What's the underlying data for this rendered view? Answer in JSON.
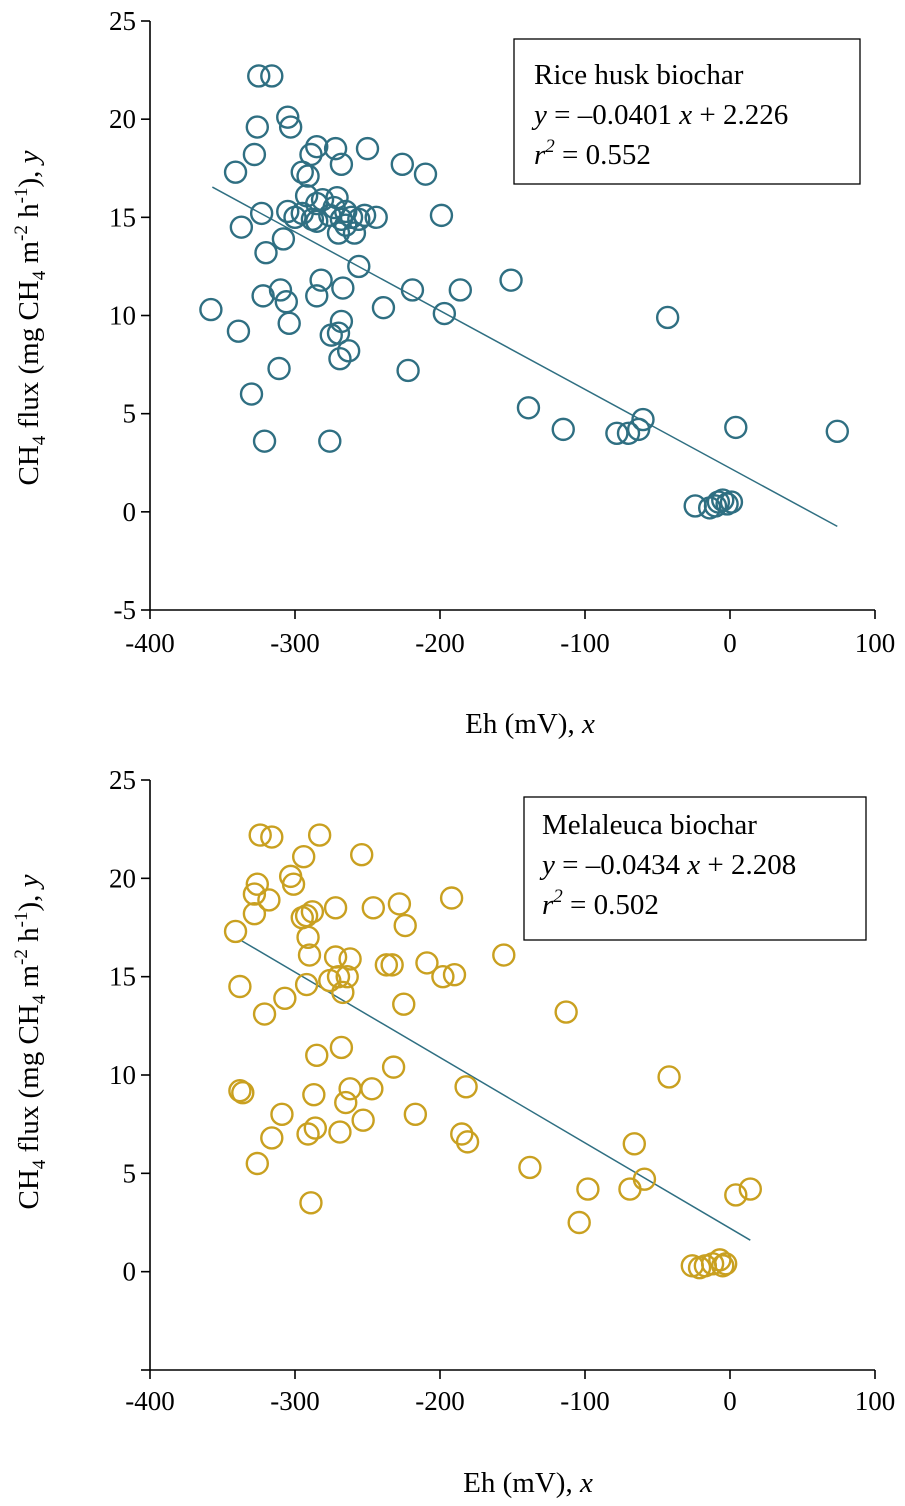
{
  "chart_data": [
    {
      "type": "scatter",
      "xlabel": "Eh (mV), x",
      "ylabel": "CH4 flux (mg CH4 m-2 h-1), y",
      "xlim": [
        -400,
        100
      ],
      "ylim": [
        -5,
        25
      ],
      "xticks": [
        "-400",
        "-300",
        "-200",
        "-100",
        "0",
        "100"
      ],
      "yticks": [
        "-5",
        "0",
        "5",
        "10",
        "15",
        "20",
        "25"
      ],
      "grid": false,
      "legend_position": "top-right",
      "marker_color": "#2f6f82",
      "line_color": "#2f6f82",
      "legend": {
        "title": "Rice husk biochar",
        "equation": "y = –0.0401 x + 2.226",
        "r2": "r2 = 0.552"
      },
      "regression": {
        "slope": -0.0401,
        "intercept": 2.226,
        "x_range": [
          -357,
          74
        ]
      },
      "series": [
        {
          "points": [
            [
              -325,
              22.2
            ],
            [
              -316,
              22.2
            ],
            [
              -305,
              20.1
            ],
            [
              -303,
              19.6
            ],
            [
              -326,
              19.6
            ],
            [
              -328,
              18.2
            ],
            [
              -341,
              17.3
            ],
            [
              -295,
              17.3
            ],
            [
              -291,
              17.1
            ],
            [
              -289,
              18.2
            ],
            [
              -285,
              18.6
            ],
            [
              -272,
              18.5
            ],
            [
              -268,
              17.7
            ],
            [
              -250,
              18.5
            ],
            [
              -226,
              17.7
            ],
            [
              -210,
              17.2
            ],
            [
              -305,
              15.3
            ],
            [
              -300,
              15.0
            ],
            [
              -292,
              16.1
            ],
            [
              -288,
              14.9
            ],
            [
              -285,
              15.7
            ],
            [
              -281,
              15.9
            ],
            [
              -276,
              15.1
            ],
            [
              -273,
              15.5
            ],
            [
              -271,
              16.0
            ],
            [
              -268,
              14.9
            ],
            [
              -265,
              15.3
            ],
            [
              -261,
              15.0
            ],
            [
              -259,
              14.2
            ],
            [
              -256,
              14.9
            ],
            [
              -252,
              15.1
            ],
            [
              -244,
              15.0
            ],
            [
              -199,
              15.1
            ],
            [
              -323,
              15.2
            ],
            [
              -337,
              14.5
            ],
            [
              -308,
              13.9
            ],
            [
              -320,
              13.2
            ],
            [
              -295,
              15.2
            ],
            [
              -285,
              14.8
            ],
            [
              -270,
              14.2
            ],
            [
              -265,
              14.6
            ],
            [
              -256,
              12.5
            ],
            [
              -282,
              11.8
            ],
            [
              -285,
              11.0
            ],
            [
              -267,
              11.4
            ],
            [
              -310,
              11.3
            ],
            [
              -306,
              10.7
            ],
            [
              -322,
              11.0
            ],
            [
              -358,
              10.3
            ],
            [
              -339,
              9.2
            ],
            [
              -304,
              9.6
            ],
            [
              -268,
              9.7
            ],
            [
              -270,
              9.1
            ],
            [
              -275,
              9.0
            ],
            [
              -263,
              8.2
            ],
            [
              -269,
              7.8
            ],
            [
              -239,
              10.4
            ],
            [
              -219,
              11.3
            ],
            [
              -197,
              10.1
            ],
            [
              -186,
              11.3
            ],
            [
              -151,
              11.8
            ],
            [
              -311,
              7.3
            ],
            [
              -222,
              7.2
            ],
            [
              -330,
              6.0
            ],
            [
              -321,
              3.6
            ],
            [
              -276,
              3.6
            ],
            [
              -139,
              5.3
            ],
            [
              -115,
              4.2
            ],
            [
              -78,
              4.0
            ],
            [
              -70,
              4.0
            ],
            [
              -63,
              4.2
            ],
            [
              -60,
              4.7
            ],
            [
              -43,
              9.9
            ],
            [
              4,
              4.3
            ],
            [
              74,
              4.1
            ],
            [
              -24,
              0.3
            ],
            [
              -14,
              0.2
            ],
            [
              -10,
              0.3
            ],
            [
              -8,
              0.5
            ],
            [
              -5,
              0.6
            ],
            [
              -2,
              0.4
            ],
            [
              1,
              0.5
            ]
          ]
        }
      ]
    },
    {
      "type": "scatter",
      "xlabel": "Eh (mV), x",
      "ylabel": "CH4 flux (mg CH4 m-2 h-1), y",
      "xlim": [
        -400,
        100
      ],
      "ylim": [
        -5,
        25
      ],
      "xticks": [
        "-400",
        "-300",
        "-200",
        "-100",
        "0",
        "100"
      ],
      "yticks": [
        "0",
        "5",
        "10",
        "15",
        "20",
        "25"
      ],
      "grid": false,
      "legend_position": "top-right",
      "marker_color": "#c9a020",
      "line_color": "#2f6f82",
      "legend": {
        "title": "Melaleuca biochar",
        "equation": "y = –0.0434 x + 2.208",
        "r2": "r2 = 0.502"
      },
      "regression": {
        "slope": -0.0434,
        "intercept": 2.208,
        "x_range": [
          -337,
          14
        ]
      },
      "series": [
        {
          "points": [
            [
              -324,
              22.2
            ],
            [
              -316,
              22.1
            ],
            [
              -283,
              22.2
            ],
            [
              -254,
              21.2
            ],
            [
              -294,
              21.1
            ],
            [
              -303,
              20.1
            ],
            [
              -301,
              19.7
            ],
            [
              -326,
              19.7
            ],
            [
              -328,
              19.2
            ],
            [
              -318,
              18.9
            ],
            [
              -292,
              18.1
            ],
            [
              -295,
              18.0
            ],
            [
              -288,
              18.3
            ],
            [
              -272,
              18.5
            ],
            [
              -246,
              18.5
            ],
            [
              -228,
              18.7
            ],
            [
              -192,
              19.0
            ],
            [
              -328,
              18.2
            ],
            [
              -341,
              17.3
            ],
            [
              -291,
              17.0
            ],
            [
              -224,
              17.6
            ],
            [
              -156,
              16.1
            ],
            [
              -290,
              16.1
            ],
            [
              -272,
              16.0
            ],
            [
              -262,
              15.9
            ],
            [
              -237,
              15.6
            ],
            [
              -233,
              15.6
            ],
            [
              -209,
              15.7
            ],
            [
              -198,
              15.0
            ],
            [
              -190,
              15.1
            ],
            [
              -292,
              14.6
            ],
            [
              -276,
              14.8
            ],
            [
              -270,
              15.0
            ],
            [
              -267,
              14.2
            ],
            [
              -264,
              15.0
            ],
            [
              -338,
              14.5
            ],
            [
              -307,
              13.9
            ],
            [
              -321,
              13.1
            ],
            [
              -225,
              13.6
            ],
            [
              -113,
              13.2
            ],
            [
              -285,
              11.0
            ],
            [
              -268,
              11.4
            ],
            [
              -232,
              10.4
            ],
            [
              -338,
              9.2
            ],
            [
              -336,
              9.1
            ],
            [
              -287,
              9.0
            ],
            [
              -265,
              8.6
            ],
            [
              -262,
              9.3
            ],
            [
              -247,
              9.3
            ],
            [
              -182,
              9.4
            ],
            [
              -42,
              9.9
            ],
            [
              -309,
              8.0
            ],
            [
              -217,
              8.0
            ],
            [
              -269,
              7.1
            ],
            [
              -291,
              7.0
            ],
            [
              -286,
              7.3
            ],
            [
              -253,
              7.7
            ],
            [
              -185,
              7.0
            ],
            [
              -181,
              6.6
            ],
            [
              -316,
              6.8
            ],
            [
              -326,
              5.5
            ],
            [
              -289,
              3.5
            ],
            [
              -138,
              5.3
            ],
            [
              -98,
              4.2
            ],
            [
              -69,
              4.2
            ],
            [
              -66,
              6.5
            ],
            [
              -59,
              4.7
            ],
            [
              -104,
              2.5
            ],
            [
              4,
              3.9
            ],
            [
              14,
              4.2
            ],
            [
              -26,
              0.3
            ],
            [
              -21,
              0.2
            ],
            [
              -17,
              0.3
            ],
            [
              -12,
              0.4
            ],
            [
              -7,
              0.6
            ],
            [
              -5,
              0.3
            ],
            [
              -3,
              0.4
            ]
          ]
        }
      ]
    }
  ]
}
